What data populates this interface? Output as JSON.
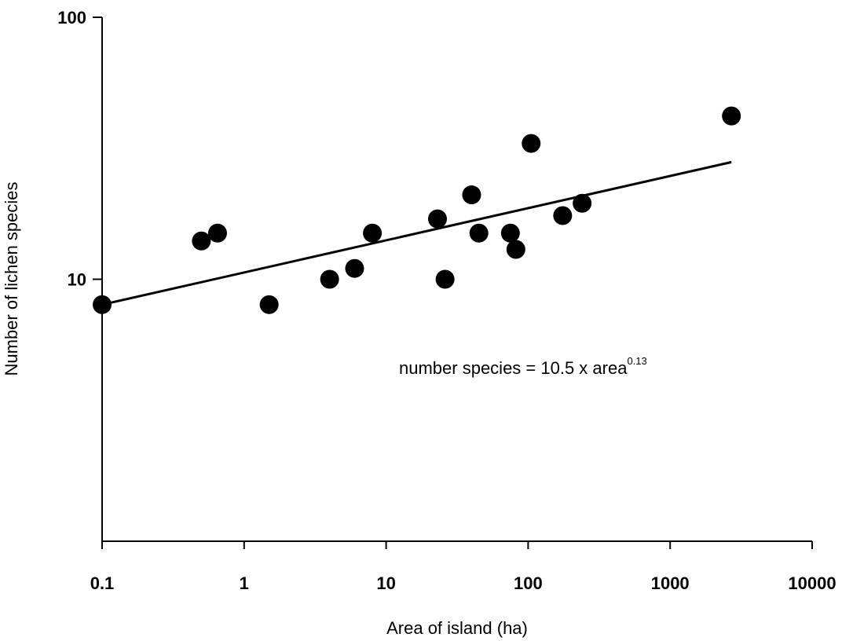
{
  "chart_data": {
    "type": "scatter",
    "title": "",
    "xlabel": "Area of island (ha)",
    "ylabel": "Number of lichen species",
    "x_scale": "log",
    "y_scale": "log",
    "xlim": [
      0.1,
      10000
    ],
    "ylim": [
      1,
      100
    ],
    "x_ticks": [
      0.1,
      1,
      10,
      100,
      1000,
      10000
    ],
    "x_tick_labels": [
      "0.1",
      "1",
      "10",
      "100",
      "1000",
      "10000"
    ],
    "y_ticks": [
      10,
      100
    ],
    "y_tick_labels": [
      "10",
      "100"
    ],
    "grid": false,
    "point_color": "#000000",
    "points": [
      {
        "x": 0.1,
        "y": 8
      },
      {
        "x": 0.5,
        "y": 14
      },
      {
        "x": 0.65,
        "y": 15
      },
      {
        "x": 1.5,
        "y": 8
      },
      {
        "x": 4,
        "y": 10
      },
      {
        "x": 6,
        "y": 11
      },
      {
        "x": 8,
        "y": 15
      },
      {
        "x": 23,
        "y": 17
      },
      {
        "x": 26,
        "y": 10
      },
      {
        "x": 40,
        "y": 21
      },
      {
        "x": 45,
        "y": 15
      },
      {
        "x": 75,
        "y": 15
      },
      {
        "x": 82,
        "y": 13
      },
      {
        "x": 105,
        "y": 33
      },
      {
        "x": 175,
        "y": 17.5
      },
      {
        "x": 240,
        "y": 19.5
      },
      {
        "x": 2700,
        "y": 42
      }
    ],
    "fit_line": {
      "x": [
        0.1,
        2700
      ],
      "y": [
        8,
        28
      ]
    },
    "annotation": {
      "text": "number species = 10.5 x area",
      "superscript": "0.13"
    }
  }
}
